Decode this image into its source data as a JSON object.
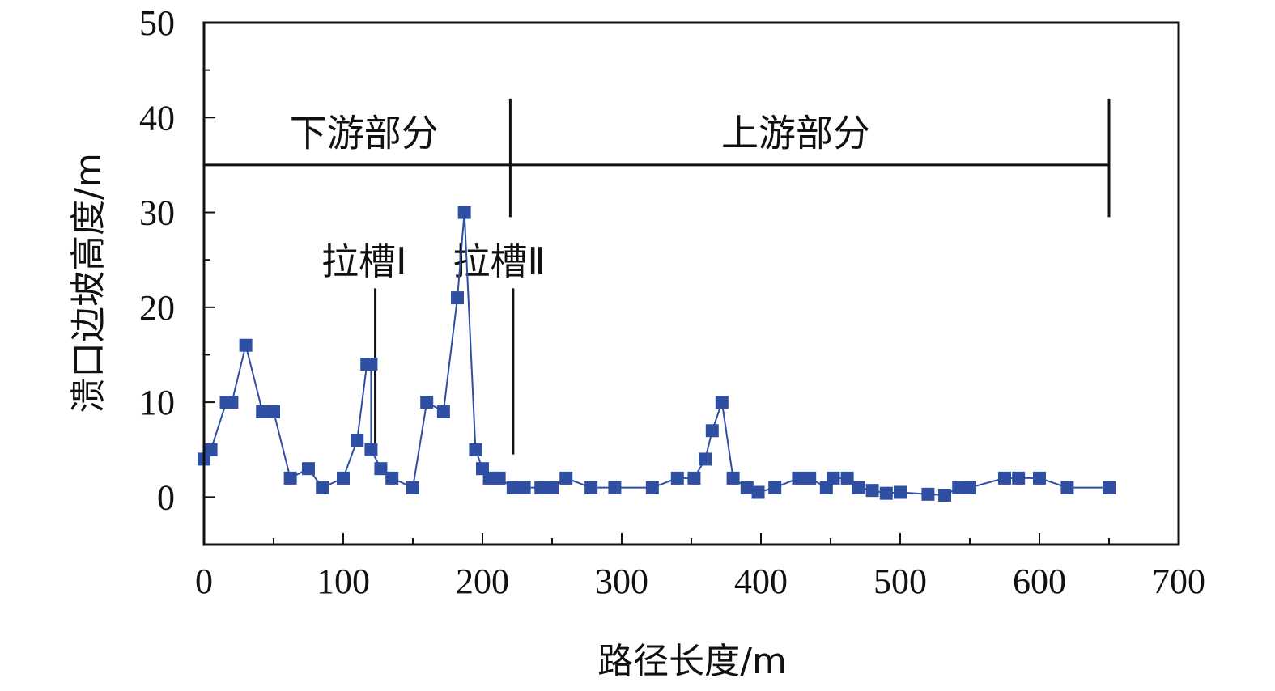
{
  "chart_data": {
    "type": "line",
    "xlabel": "路径长度/m",
    "ylabel": "溃口边坡高度/m",
    "xlim": [
      0,
      700
    ],
    "ylim": [
      -5,
      50
    ],
    "xticks": [
      "0",
      "100",
      "200",
      "300",
      "400",
      "500",
      "600",
      "700"
    ],
    "yticks": [
      "0",
      "10",
      "20",
      "30",
      "40",
      "50"
    ],
    "grid": false,
    "legend": "none",
    "series_color": "#2f4fa3",
    "marker": "square",
    "points": [
      [
        0,
        4
      ],
      [
        5,
        5
      ],
      [
        16,
        10
      ],
      [
        20,
        10
      ],
      [
        30,
        16
      ],
      [
        42,
        9
      ],
      [
        50,
        9
      ],
      [
        62,
        2
      ],
      [
        75,
        3
      ],
      [
        85,
        1
      ],
      [
        100,
        2
      ],
      [
        110,
        6
      ],
      [
        117,
        14
      ],
      [
        120,
        14
      ],
      [
        120,
        5
      ],
      [
        127,
        3
      ],
      [
        135,
        2
      ],
      [
        150,
        1
      ],
      [
        160,
        10
      ],
      [
        172,
        9
      ],
      [
        182,
        21
      ],
      [
        187,
        30
      ],
      [
        195,
        5
      ],
      [
        200,
        3
      ],
      [
        205,
        2
      ],
      [
        212,
        2
      ],
      [
        222,
        1
      ],
      [
        230,
        1
      ],
      [
        242,
        1
      ],
      [
        250,
        1
      ],
      [
        260,
        2
      ],
      [
        278,
        1
      ],
      [
        295,
        1
      ],
      [
        322,
        1
      ],
      [
        340,
        2
      ],
      [
        352,
        2
      ],
      [
        360,
        4
      ],
      [
        365,
        7
      ],
      [
        372,
        10
      ],
      [
        380,
        2
      ],
      [
        390,
        1
      ],
      [
        398,
        0.5
      ],
      [
        410,
        1
      ],
      [
        427,
        2
      ],
      [
        435,
        2
      ],
      [
        447,
        1
      ],
      [
        452,
        2
      ],
      [
        462,
        2
      ],
      [
        470,
        1
      ],
      [
        480,
        0.7
      ],
      [
        490,
        0.4
      ],
      [
        500,
        0.5
      ],
      [
        520,
        0.3
      ],
      [
        532,
        0.2
      ],
      [
        542,
        1
      ],
      [
        550,
        1
      ],
      [
        575,
        2
      ],
      [
        585,
        2
      ],
      [
        600,
        2
      ],
      [
        620,
        1
      ],
      [
        650,
        1
      ]
    ],
    "annotations": {
      "regions": [
        {
          "label": "下游部分",
          "x_start": 0,
          "x_end": 220
        },
        {
          "label": "上游部分",
          "x_start": 220,
          "x_end": 650
        }
      ],
      "region_line_y": 35,
      "notches": [
        {
          "label": "拉槽Ⅰ",
          "x": 123
        },
        {
          "label": "拉槽Ⅱ",
          "x": 222
        }
      ]
    }
  }
}
